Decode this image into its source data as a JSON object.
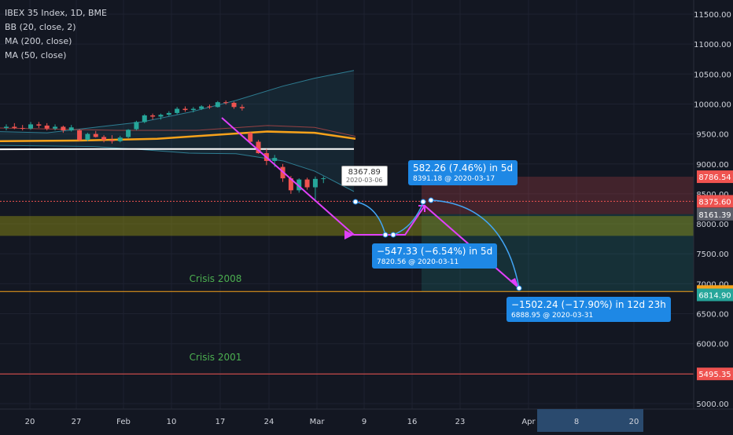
{
  "legend": {
    "title": "IBEX 35 Index, 1D, BME",
    "bb": "BB (20, close, 2)",
    "ma200": "MA (200, close)",
    "ma50": "MA (50, close)"
  },
  "colors": {
    "background": "#131722",
    "up_candle": "#26a69a",
    "down_candle": "#ef5350",
    "ma50": "#f7a21b",
    "ma200": "#ffffff",
    "bollinger": "#2e7d92",
    "arrow": "#e040fb",
    "callout": "#1e88e5"
  },
  "chart_data": {
    "type": "candlestick",
    "y_axis": {
      "ticks": [
        "11500.00",
        "11000.00",
        "10500.00",
        "10000.00",
        "9500.00",
        "9000.00",
        "8500.00",
        "8000.00",
        "7500.00",
        "7000.00",
        "6500.00",
        "6000.00",
        "5500.00",
        "5000.00"
      ],
      "range": [
        4900,
        11700
      ]
    },
    "x_axis": {
      "ticks": [
        "20",
        "27",
        "Feb",
        "10",
        "17",
        "24",
        "Mar",
        "9",
        "16",
        "23",
        "Apr",
        "8",
        "20"
      ]
    },
    "candles": [
      {
        "date": "2020-01-14",
        "o": 9600,
        "h": 9660,
        "l": 9560,
        "c": 9620
      },
      {
        "date": "2020-01-15",
        "o": 9620,
        "h": 9680,
        "l": 9580,
        "c": 9600
      },
      {
        "date": "2020-01-16",
        "o": 9600,
        "h": 9650,
        "l": 9560,
        "c": 9590
      },
      {
        "date": "2020-01-17",
        "o": 9590,
        "h": 9700,
        "l": 9570,
        "c": 9660
      },
      {
        "date": "2020-01-20",
        "o": 9660,
        "h": 9700,
        "l": 9600,
        "c": 9640
      },
      {
        "date": "2020-01-21",
        "o": 9640,
        "h": 9680,
        "l": 9560,
        "c": 9590
      },
      {
        "date": "2020-01-22",
        "o": 9590,
        "h": 9660,
        "l": 9560,
        "c": 9620
      },
      {
        "date": "2020-01-23",
        "o": 9620,
        "h": 9640,
        "l": 9520,
        "c": 9560
      },
      {
        "date": "2020-01-24",
        "o": 9560,
        "h": 9650,
        "l": 9540,
        "c": 9610
      },
      {
        "date": "2020-01-27",
        "o": 9560,
        "h": 9580,
        "l": 9380,
        "c": 9400
      },
      {
        "date": "2020-01-28",
        "o": 9400,
        "h": 9520,
        "l": 9380,
        "c": 9500
      },
      {
        "date": "2020-01-29",
        "o": 9500,
        "h": 9550,
        "l": 9440,
        "c": 9450
      },
      {
        "date": "2020-01-30",
        "o": 9450,
        "h": 9480,
        "l": 9360,
        "c": 9400
      },
      {
        "date": "2020-01-31",
        "o": 9400,
        "h": 9480,
        "l": 9340,
        "c": 9380
      },
      {
        "date": "2020-02-03",
        "o": 9380,
        "h": 9470,
        "l": 9360,
        "c": 9440
      },
      {
        "date": "2020-02-04",
        "o": 9450,
        "h": 9580,
        "l": 9430,
        "c": 9570
      },
      {
        "date": "2020-02-05",
        "o": 9580,
        "h": 9720,
        "l": 9560,
        "c": 9700
      },
      {
        "date": "2020-02-06",
        "o": 9700,
        "h": 9830,
        "l": 9680,
        "c": 9810
      },
      {
        "date": "2020-02-07",
        "o": 9810,
        "h": 9840,
        "l": 9740,
        "c": 9790
      },
      {
        "date": "2020-02-10",
        "o": 9790,
        "h": 9840,
        "l": 9740,
        "c": 9820
      },
      {
        "date": "2020-02-11",
        "o": 9820,
        "h": 9880,
        "l": 9800,
        "c": 9850
      },
      {
        "date": "2020-02-12",
        "o": 9850,
        "h": 9950,
        "l": 9830,
        "c": 9920
      },
      {
        "date": "2020-02-13",
        "o": 9920,
        "h": 9960,
        "l": 9870,
        "c": 9900
      },
      {
        "date": "2020-02-14",
        "o": 9900,
        "h": 9950,
        "l": 9860,
        "c": 9920
      },
      {
        "date": "2020-02-17",
        "o": 9920,
        "h": 9980,
        "l": 9900,
        "c": 9960
      },
      {
        "date": "2020-02-18",
        "o": 9960,
        "h": 9990,
        "l": 9920,
        "c": 9950
      },
      {
        "date": "2020-02-19",
        "o": 9950,
        "h": 10050,
        "l": 9940,
        "c": 10030
      },
      {
        "date": "2020-02-20",
        "o": 10030,
        "h": 10060,
        "l": 9990,
        "c": 10020
      },
      {
        "date": "2020-02-21",
        "o": 10020,
        "h": 10040,
        "l": 9920,
        "c": 9950
      },
      {
        "date": "2020-02-24",
        "o": 9950,
        "h": 9990,
        "l": 9890,
        "c": 9930
      },
      {
        "date": "2020-02-25",
        "o": 9520,
        "h": 9540,
        "l": 9330,
        "c": 9370
      },
      {
        "date": "2020-02-26",
        "o": 9370,
        "h": 9400,
        "l": 9170,
        "c": 9180
      },
      {
        "date": "2020-02-27",
        "o": 9180,
        "h": 9250,
        "l": 8980,
        "c": 9050
      },
      {
        "date": "2020-02-28",
        "o": 9050,
        "h": 9150,
        "l": 8950,
        "c": 9100
      },
      {
        "date": "2020-03-02",
        "o": 8950,
        "h": 9000,
        "l": 8700,
        "c": 8760
      },
      {
        "date": "2020-03-03",
        "o": 8760,
        "h": 8800,
        "l": 8500,
        "c": 8560
      },
      {
        "date": "2020-03-04",
        "o": 8560,
        "h": 8760,
        "l": 8520,
        "c": 8740
      },
      {
        "date": "2020-03-05",
        "o": 8740,
        "h": 8770,
        "l": 8570,
        "c": 8610
      },
      {
        "date": "2020-03-06",
        "o": 8610,
        "h": 8790,
        "l": 8380,
        "c": 8750
      },
      {
        "date": "2020-03-06b",
        "o": 8750,
        "h": 8790,
        "l": 8680,
        "c": 8760
      }
    ],
    "indicators": {
      "ma50": "orange line rising to ~9540 by early March",
      "ma200": "white line ~9250 flat",
      "bollinger": "upper band widening to ~10560"
    },
    "horizontal_levels": [
      {
        "price": "8786.54",
        "color": "#ef5350"
      },
      {
        "price": "8375.60",
        "color": "#ef5350"
      },
      {
        "price": "8161.39",
        "color": "#5d606b"
      },
      {
        "price": "6870.22",
        "color": "#f7a21b"
      },
      {
        "price": "6814.90",
        "color": "#26a69a"
      },
      {
        "price": "5495.35",
        "color": "#ef5350"
      }
    ],
    "annotations": [
      {
        "text": "Crisis 2008",
        "price": 7030
      },
      {
        "text": "Crisis 2001",
        "price": 5720
      }
    ]
  },
  "price_box": {
    "value": "8367.89",
    "date": "2020-03-06"
  },
  "callouts": [
    {
      "main": "582.26 (7.46%) in 5d",
      "sub": "8391.18 @ 2020-03-17"
    },
    {
      "main": "−547.33 (−6.54%) in 5d",
      "sub": "7820.56 @ 2020-03-11"
    },
    {
      "main": "−1502.24 (−17.90%) in 12d 23h",
      "sub": "6888.95 @ 2020-03-31"
    }
  ]
}
